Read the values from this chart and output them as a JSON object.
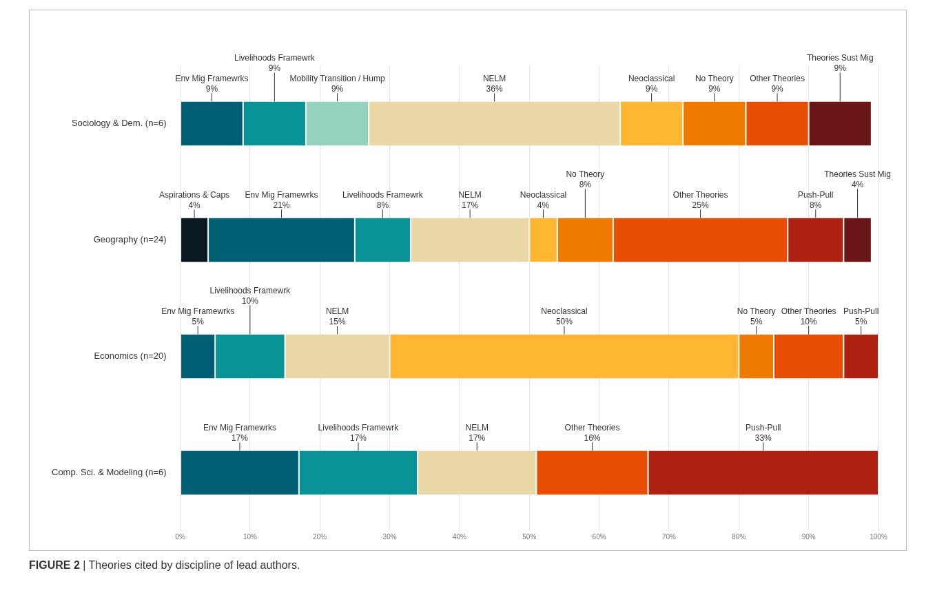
{
  "chart_data": {
    "type": "bar",
    "orientation": "horizontal",
    "stacked": true,
    "categories": [
      "Sociology & Dem. (n=6)",
      "Geography (n=24)",
      "Economics (n=20)",
      "Comp. Sci. & Modeling (n=6)"
    ],
    "series": [
      {
        "name": "Aspirations & Caps",
        "color": "#0b1a20",
        "values": [
          null,
          4,
          null,
          null
        ],
        "value_labels": [
          null,
          "4%",
          null,
          null
        ]
      },
      {
        "name": "Env Mig Framewrks",
        "color": "#005f73",
        "values": [
          9,
          21,
          5,
          17
        ],
        "value_labels": [
          "9%",
          "21%",
          "5%",
          "17%"
        ]
      },
      {
        "name": "Livelihoods Framewrk",
        "color": "#0a9396",
        "values": [
          9,
          8,
          10,
          17
        ],
        "value_labels": [
          "9%",
          "8%",
          "10%",
          "17%"
        ]
      },
      {
        "name": "Mobility Transition / Hump",
        "color": "#94d2bd",
        "values": [
          9,
          null,
          null,
          null
        ],
        "value_labels": [
          "9%",
          null,
          null,
          null
        ]
      },
      {
        "name": "NELM",
        "color": "#e9d8a6",
        "values": [
          36,
          17,
          15,
          17
        ],
        "value_labels": [
          "36%",
          "17%",
          "15%",
          "17%"
        ]
      },
      {
        "name": "Neoclassical",
        "color": "#ffb733",
        "values": [
          9,
          4,
          50,
          null
        ],
        "value_labels": [
          "9%",
          "4%",
          "50%",
          null
        ]
      },
      {
        "name": "No Theory",
        "color": "#ee7b00",
        "values": [
          9,
          8,
          5,
          null
        ],
        "value_labels": [
          "9%",
          "8%",
          "5%",
          null
        ]
      },
      {
        "name": "Other Theories",
        "color": "#e94f04",
        "values": [
          9,
          25,
          10,
          16
        ],
        "value_labels": [
          "9%",
          "25%",
          "10%",
          "16%"
        ]
      },
      {
        "name": "Push-Pull",
        "color": "#ae2012",
        "values": [
          null,
          8,
          5,
          33
        ],
        "value_labels": [
          null,
          "8%",
          "5%",
          "33%"
        ]
      },
      {
        "name": "Theories Sust Mig",
        "color": "#6b1718",
        "values": [
          9,
          4,
          null,
          null
        ],
        "value_labels": [
          "9%",
          "4%",
          null,
          null
        ]
      }
    ],
    "xlim": [
      0,
      100
    ],
    "xticks": [
      {
        "value": 0,
        "label": "0%"
      },
      {
        "value": 10,
        "label": "10%"
      },
      {
        "value": 20,
        "label": "20%"
      },
      {
        "value": 30,
        "label": "30%"
      },
      {
        "value": 40,
        "label": "40%"
      },
      {
        "value": 50,
        "label": "50%"
      },
      {
        "value": 60,
        "label": "60%"
      },
      {
        "value": 70,
        "label": "70%"
      },
      {
        "value": 80,
        "label": "80%"
      },
      {
        "value": 90,
        "label": "90%"
      },
      {
        "value": 100,
        "label": "100%"
      }
    ],
    "grid": "x",
    "legend": false,
    "annotations": [
      "FIGURE 2 | Theories cited by discipline of lead authors."
    ]
  }
}
